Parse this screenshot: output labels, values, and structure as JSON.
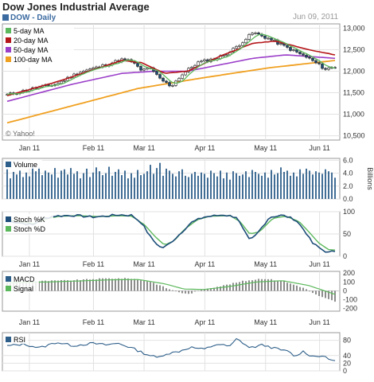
{
  "header": {
    "title": "Dow Jones Industrial Average",
    "date": "Jun 09, 2011",
    "symbol_label": "DOW - Daily"
  },
  "watermark": "© Yahoo!",
  "colors": {
    "ma5": "#5cb85c",
    "ma20": "#b5161a",
    "ma50": "#9b3fc9",
    "ma100": "#f0a020",
    "price_dark": "#1e4e79",
    "stoch_k": "#1e4e79",
    "stoch_d": "#5cb85c",
    "volume": "#2e5f8a",
    "rsi": "#2e5f8a"
  },
  "x_labels": [
    "Jan 11",
    "Feb 11",
    "Mar 11",
    "Apr 11",
    "May 11",
    "Jun 11"
  ],
  "chart_data": [
    {
      "type": "line",
      "name": "price",
      "legend": [
        "5-day MA",
        "20-day MA",
        "50-day MA",
        "100-day MA"
      ],
      "ylim": [
        10400,
        13100
      ],
      "yticks": [
        "13,000",
        "12,500",
        "12,000",
        "11,500",
        "11,000",
        "10,500"
      ],
      "ytick_values": [
        13000,
        12500,
        12000,
        11500,
        11000,
        10500
      ],
      "price_keypoints": [
        [
          0,
          11450
        ],
        [
          8,
          11600
        ],
        [
          15,
          11700
        ],
        [
          22,
          11980
        ],
        [
          28,
          12100
        ],
        [
          35,
          12270
        ],
        [
          38,
          12230
        ],
        [
          41,
          12000
        ],
        [
          43,
          12100
        ],
        [
          47,
          11800
        ],
        [
          50,
          11650
        ],
        [
          53,
          11900
        ],
        [
          58,
          12200
        ],
        [
          64,
          12300
        ],
        [
          68,
          12450
        ],
        [
          72,
          12700
        ],
        [
          75,
          12900
        ],
        [
          80,
          12750
        ],
        [
          84,
          12600
        ],
        [
          88,
          12450
        ],
        [
          92,
          12300
        ],
        [
          95,
          12150
        ],
        [
          97,
          12050
        ],
        [
          100,
          12100
        ]
      ],
      "ma100_keypoints": [
        [
          0,
          10800
        ],
        [
          20,
          11200
        ],
        [
          40,
          11600
        ],
        [
          60,
          11850
        ],
        [
          80,
          12080
        ],
        [
          100,
          12250
        ]
      ],
      "ma50_keypoints": [
        [
          0,
          11300
        ],
        [
          20,
          11700
        ],
        [
          35,
          11950
        ],
        [
          45,
          12000
        ],
        [
          55,
          12000
        ],
        [
          75,
          12300
        ],
        [
          85,
          12380
        ],
        [
          100,
          12300
        ]
      ],
      "ma20_keypoints": [
        [
          0,
          11430
        ],
        [
          15,
          11750
        ],
        [
          35,
          12250
        ],
        [
          41,
          12200
        ],
        [
          48,
          11950
        ],
        [
          55,
          12000
        ],
        [
          65,
          12350
        ],
        [
          75,
          12650
        ],
        [
          82,
          12700
        ],
        [
          92,
          12500
        ],
        [
          100,
          12380
        ]
      ]
    },
    {
      "type": "bar",
      "name": "volume",
      "legend": [
        "Volume"
      ],
      "ylabel": "Billions",
      "ylim": [
        0,
        6.3
      ],
      "yticks": [
        "6.0",
        "4.0",
        "2.0",
        "0.0"
      ],
      "ytick_values": [
        6,
        4,
        2,
        0
      ],
      "values": [
        4.6,
        3.2,
        4.2,
        3.8,
        4.4,
        3.4,
        4.1,
        3.5,
        5.2,
        4.3,
        4.9,
        3.7,
        4.4,
        4.1,
        3.8,
        4.8,
        3.3,
        4.4,
        4.6,
        3.8,
        4.8,
        3.9,
        4.3,
        3.2,
        4.0,
        4.7,
        3.4,
        4.1,
        4.9,
        4.3,
        3.7,
        4.0,
        5.0,
        3.6,
        4.2,
        4.6,
        3.7,
        4.4,
        3.2,
        4.0,
        3.3,
        4.5,
        3.7,
        3.9,
        4.3,
        5.3,
        3.9,
        4.8,
        5.6,
        3.6,
        4.7,
        4.4,
        3.9,
        3.5,
        4.3,
        4.6,
        3.6,
        3.4,
        3.9,
        4.2,
        3.6,
        4.1,
        3.9,
        3.3,
        4.4,
        4.0,
        3.5,
        4.4,
        3.2,
        4.1,
        3.0,
        4.3,
        4.0,
        3.6,
        3.8,
        4.3,
        3.4,
        4.5,
        4.2,
        3.9,
        3.6,
        4.1,
        3.3,
        4.5,
        3.8,
        4.0,
        4.9,
        4.2,
        4.4,
        3.6,
        4.1,
        3.5,
        4.6,
        3.9,
        4.7,
        4.4,
        3.8,
        4.3,
        4.1,
        3.9,
        4.6,
        4.3,
        4.1,
        3.3
      ]
    },
    {
      "type": "line",
      "name": "stochastic",
      "legend": [
        "Stoch %K",
        "Stoch %D"
      ],
      "ylim": [
        0,
        100
      ],
      "yticks": [
        "100",
        "50",
        "0"
      ],
      "ytick_values": [
        100,
        50,
        0
      ],
      "k_keypoints": [
        [
          0,
          80
        ],
        [
          4,
          75
        ],
        [
          8,
          70
        ],
        [
          10,
          82
        ],
        [
          14,
          90
        ],
        [
          20,
          92
        ],
        [
          26,
          88
        ],
        [
          30,
          90
        ],
        [
          34,
          93
        ],
        [
          38,
          92
        ],
        [
          41,
          75
        ],
        [
          44,
          40
        ],
        [
          47,
          18
        ],
        [
          49,
          25
        ],
        [
          52,
          45
        ],
        [
          56,
          75
        ],
        [
          60,
          88
        ],
        [
          66,
          93
        ],
        [
          70,
          88
        ],
        [
          72,
          60
        ],
        [
          74,
          35
        ],
        [
          76,
          48
        ],
        [
          80,
          88
        ],
        [
          84,
          92
        ],
        [
          88,
          82
        ],
        [
          91,
          55
        ],
        [
          93,
          30
        ],
        [
          96,
          15
        ],
        [
          98,
          8
        ],
        [
          100,
          12
        ]
      ],
      "d_keypoints": [
        [
          0,
          82
        ],
        [
          4,
          78
        ],
        [
          8,
          73
        ],
        [
          12,
          84
        ],
        [
          16,
          90
        ],
        [
          22,
          91
        ],
        [
          28,
          89
        ],
        [
          34,
          91
        ],
        [
          38,
          90
        ],
        [
          42,
          70
        ],
        [
          45,
          45
        ],
        [
          48,
          25
        ],
        [
          51,
          35
        ],
        [
          54,
          60
        ],
        [
          58,
          82
        ],
        [
          62,
          90
        ],
        [
          68,
          91
        ],
        [
          71,
          78
        ],
        [
          74,
          50
        ],
        [
          77,
          55
        ],
        [
          81,
          85
        ],
        [
          85,
          90
        ],
        [
          89,
          78
        ],
        [
          92,
          55
        ],
        [
          95,
          30
        ],
        [
          98,
          15
        ],
        [
          100,
          14
        ]
      ]
    },
    {
      "type": "bar",
      "name": "macd",
      "legend": [
        "MACD",
        "Signal"
      ],
      "ylim": [
        -230,
        220
      ],
      "yticks": [
        "200",
        "100",
        "0",
        "-100",
        "-200"
      ],
      "ytick_values": [
        200,
        100,
        0,
        -100,
        -200
      ],
      "hist_keypoints": [
        [
          0,
          95
        ],
        [
          10,
          110
        ],
        [
          20,
          120
        ],
        [
          30,
          140
        ],
        [
          38,
          140
        ],
        [
          44,
          100
        ],
        [
          50,
          10
        ],
        [
          55,
          -40
        ],
        [
          60,
          20
        ],
        [
          66,
          60
        ],
        [
          72,
          110
        ],
        [
          78,
          140
        ],
        [
          84,
          110
        ],
        [
          90,
          40
        ],
        [
          95,
          -60
        ],
        [
          100,
          -120
        ]
      ],
      "signal_keypoints": [
        [
          0,
          92
        ],
        [
          12,
          100
        ],
        [
          22,
          112
        ],
        [
          32,
          125
        ],
        [
          40,
          128
        ],
        [
          48,
          80
        ],
        [
          54,
          20
        ],
        [
          60,
          15
        ],
        [
          68,
          50
        ],
        [
          76,
          100
        ],
        [
          84,
          115
        ],
        [
          92,
          60
        ],
        [
          100,
          -40
        ]
      ]
    },
    {
      "type": "line",
      "name": "rsi",
      "legend": [
        "RSI"
      ],
      "ylim": [
        0,
        100
      ],
      "yticks": [
        "80",
        "40",
        "20",
        "0"
      ],
      "ytick_values": [
        80,
        40,
        20,
        0
      ],
      "keypoints": [
        [
          0,
          65
        ],
        [
          5,
          70
        ],
        [
          10,
          60
        ],
        [
          15,
          75
        ],
        [
          20,
          66
        ],
        [
          26,
          72
        ],
        [
          30,
          68
        ],
        [
          34,
          72
        ],
        [
          38,
          60
        ],
        [
          42,
          45
        ],
        [
          46,
          34
        ],
        [
          48,
          44
        ],
        [
          52,
          50
        ],
        [
          56,
          62
        ],
        [
          60,
          56
        ],
        [
          64,
          70
        ],
        [
          68,
          64
        ],
        [
          70,
          84
        ],
        [
          72,
          73
        ],
        [
          74,
          60
        ],
        [
          78,
          68
        ],
        [
          82,
          58
        ],
        [
          86,
          50
        ],
        [
          88,
          36
        ],
        [
          90,
          52
        ],
        [
          93,
          38
        ],
        [
          96,
          40
        ],
        [
          98,
          30
        ],
        [
          100,
          28
        ]
      ]
    }
  ]
}
